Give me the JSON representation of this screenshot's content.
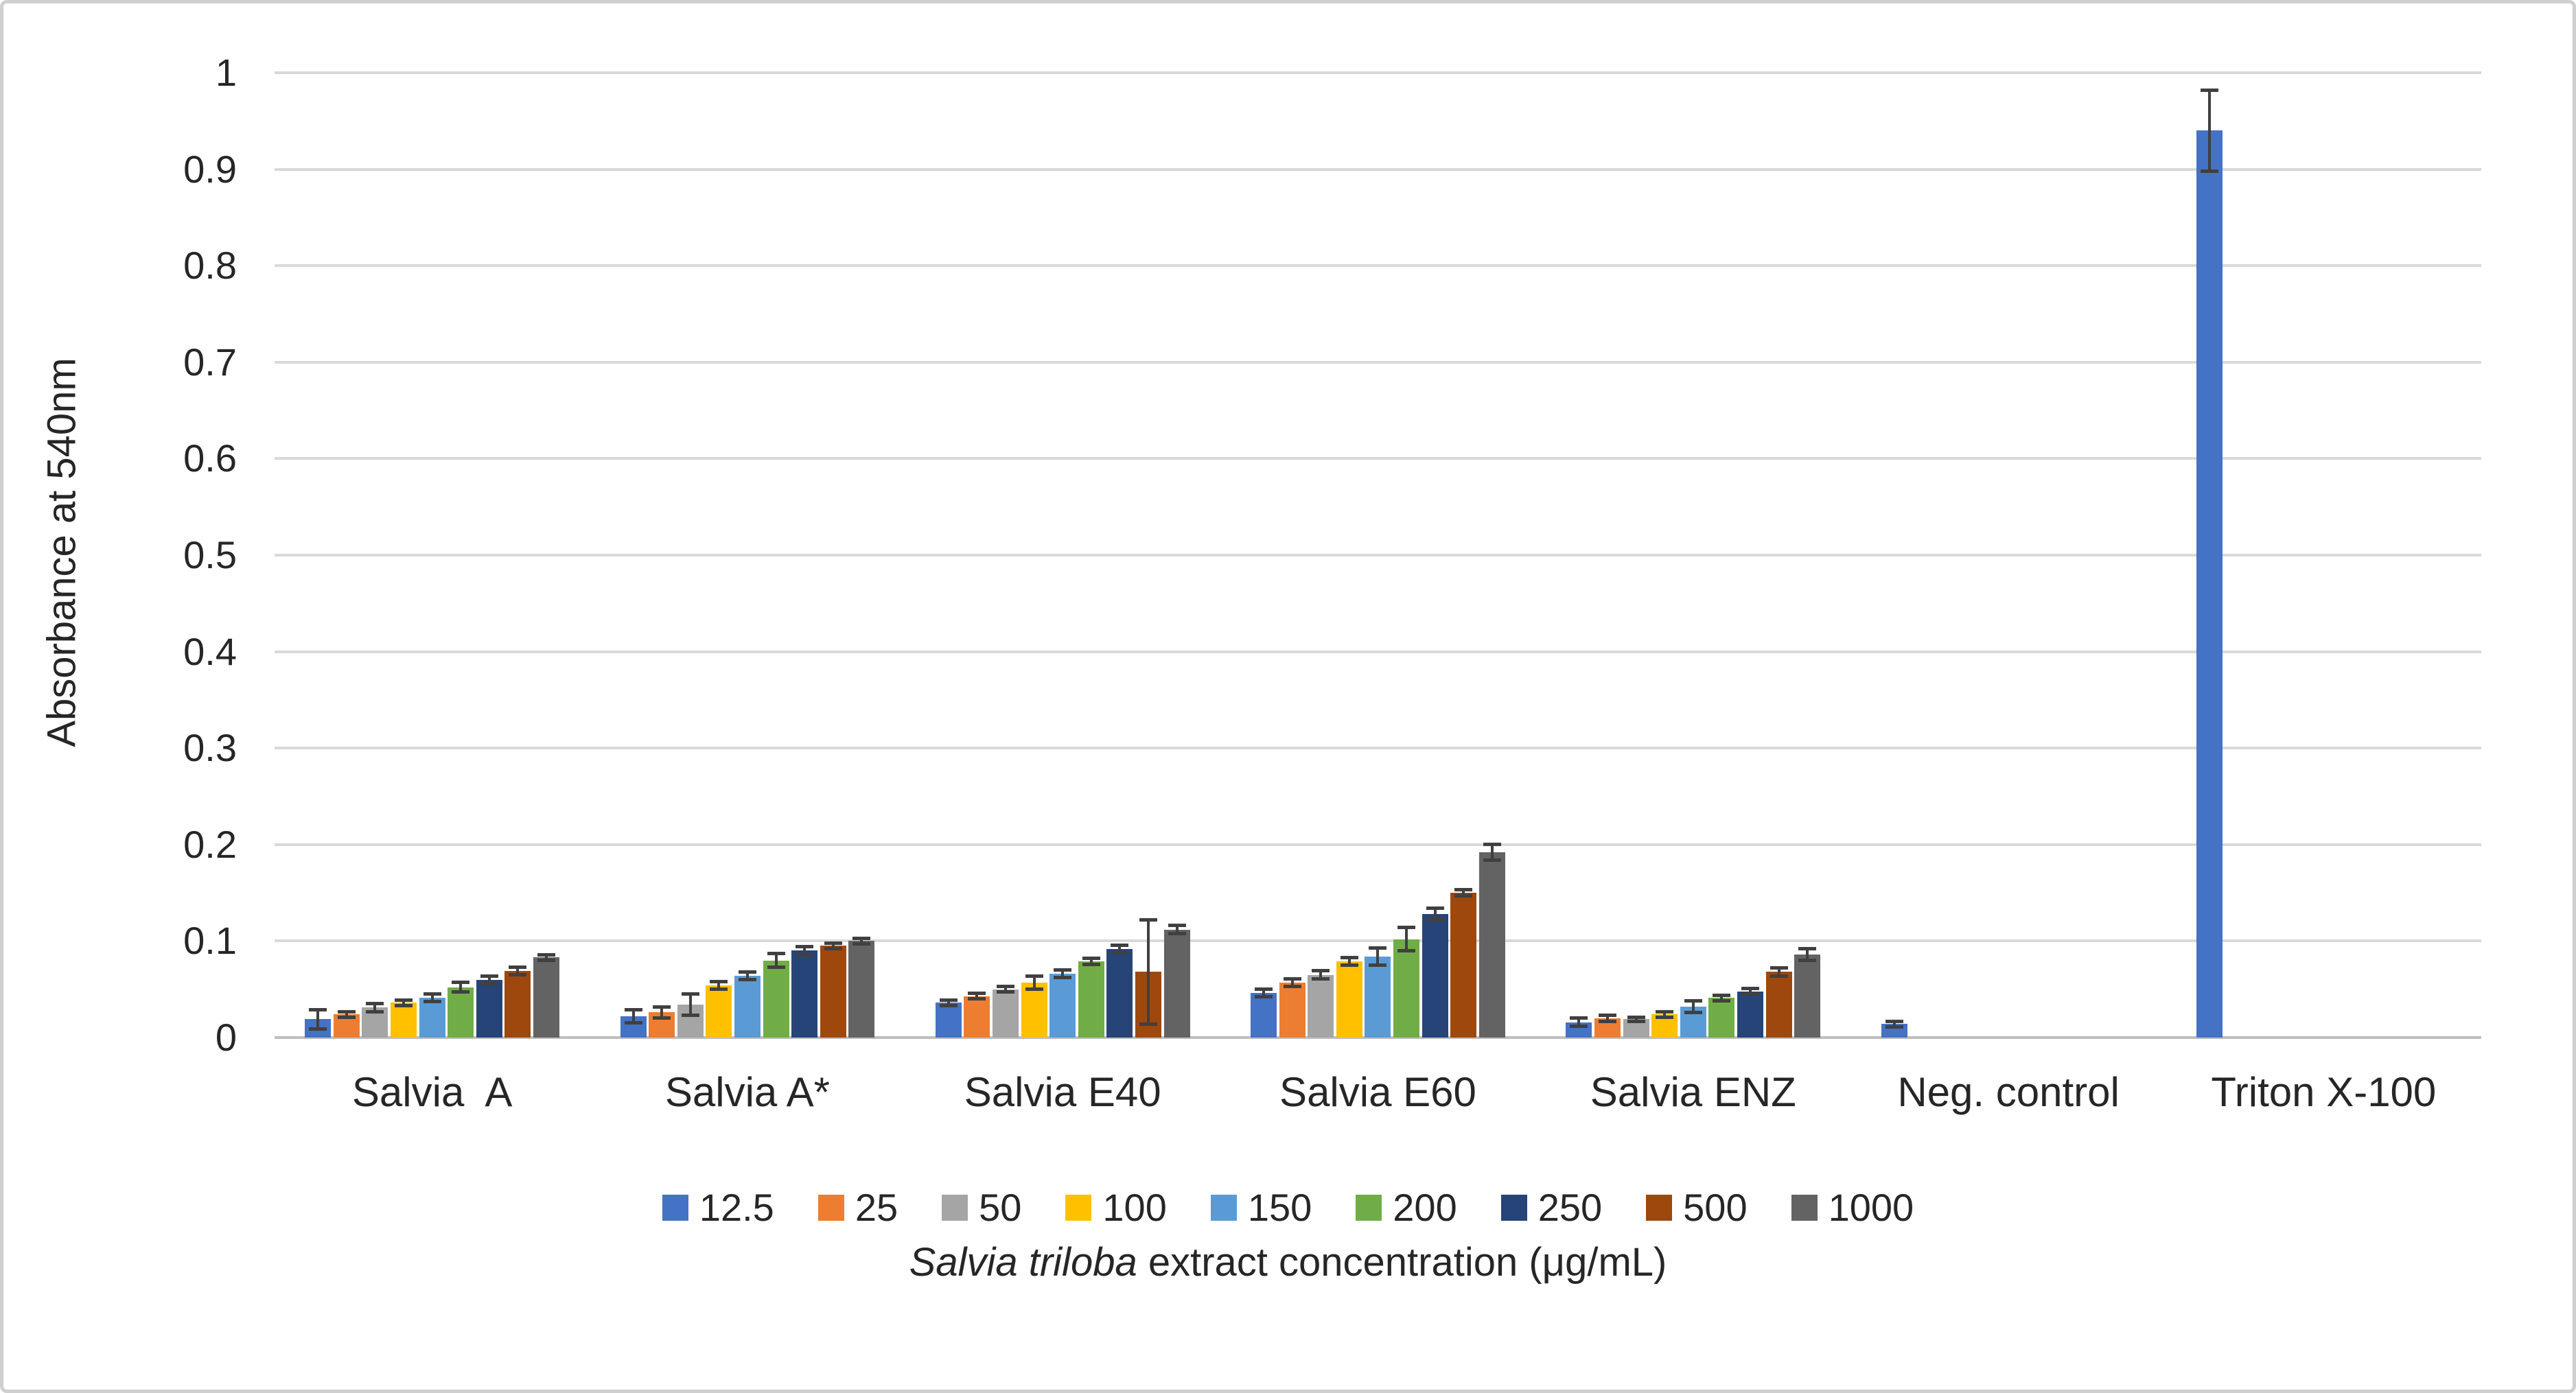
{
  "figure": {
    "background": "#ffffff",
    "border_color": "#cfcfcf",
    "gridline_color": "#d9d9d9",
    "error_bar_color": "#404040"
  },
  "chart_data": {
    "type": "bar",
    "title": "",
    "ylabel": "Absorbance at 540nm",
    "xlabel_italic": "Salvia triloba",
    "xlabel_rest": " extract concentration (μg/mL)",
    "ylim": [
      0,
      1
    ],
    "ytick_step": 0.1,
    "grid": true,
    "legend_position": "bottom",
    "categories": [
      "Salvia  A",
      "Salvia A*",
      "Salvia E40",
      "Salvia E60",
      "Salvia ENZ",
      "Neg. control",
      "Triton X-100"
    ],
    "series": [
      {
        "name": "12.5",
        "color": "#4472C4",
        "values": [
          0.019,
          0.022,
          0.036,
          0.046,
          0.016,
          0.014,
          0.94
        ],
        "errors": [
          0.01,
          0.007,
          0.003,
          0.004,
          0.004,
          0.003,
          0.042
        ]
      },
      {
        "name": "25",
        "color": "#ED7D31",
        "values": [
          0.024,
          0.026,
          0.043,
          0.057,
          0.02,
          null,
          null
        ],
        "errors": [
          0.003,
          0.006,
          0.003,
          0.004,
          0.003,
          null,
          null
        ]
      },
      {
        "name": "50",
        "color": "#A5A5A5",
        "values": [
          0.031,
          0.034,
          0.05,
          0.065,
          0.019,
          null,
          null
        ],
        "errors": [
          0.004,
          0.011,
          0.003,
          0.004,
          0.002,
          null,
          null
        ]
      },
      {
        "name": "100",
        "color": "#FFC000",
        "values": [
          0.036,
          0.054,
          0.057,
          0.079,
          0.024,
          null,
          null
        ],
        "errors": [
          0.003,
          0.004,
          0.007,
          0.004,
          0.003,
          null,
          null
        ]
      },
      {
        "name": "150",
        "color": "#5B9BD5",
        "values": [
          0.041,
          0.064,
          0.066,
          0.084,
          0.032,
          null,
          null
        ],
        "errors": [
          0.004,
          0.004,
          0.004,
          0.009,
          0.006,
          null,
          null
        ]
      },
      {
        "name": "200",
        "color": "#70AD47",
        "values": [
          0.052,
          0.08,
          0.079,
          0.102,
          0.041,
          null,
          null
        ],
        "errors": [
          0.005,
          0.007,
          0.003,
          0.012,
          0.003,
          null,
          null
        ]
      },
      {
        "name": "250",
        "color": "#264478",
        "values": [
          0.06,
          0.09,
          0.092,
          0.128,
          0.048,
          null,
          null
        ],
        "errors": [
          0.004,
          0.004,
          0.004,
          0.006,
          0.003,
          null,
          null
        ]
      },
      {
        "name": "500",
        "color": "#9E480E",
        "values": [
          0.069,
          0.095,
          0.068,
          0.15,
          0.068,
          null,
          null
        ],
        "errors": [
          0.004,
          0.003,
          0.054,
          0.003,
          0.004,
          null,
          null
        ]
      },
      {
        "name": "1000",
        "color": "#636363",
        "values": [
          0.083,
          0.1,
          0.112,
          0.192,
          0.086,
          null,
          null
        ],
        "errors": [
          0.003,
          0.003,
          0.004,
          0.008,
          0.006,
          null,
          null
        ]
      }
    ]
  }
}
